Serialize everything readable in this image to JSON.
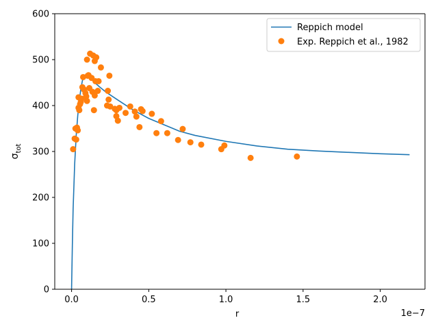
{
  "chart_data": {
    "type": "scatter",
    "xlabel": "r",
    "ylabel_main": "σ",
    "ylabel_sub": "tot",
    "x_offset_label": "1e−7",
    "xlim": [
      -0.109,
      2.29
    ],
    "ylim": [
      0,
      600
    ],
    "x_tick_values": [
      0.0,
      0.5,
      1.0,
      1.5,
      2.0
    ],
    "x_tick_labels": [
      "0.0",
      "0.5",
      "1.0",
      "1.5",
      "2.0"
    ],
    "y_tick_values": [
      0,
      100,
      200,
      300,
      400,
      500,
      600
    ],
    "y_tick_labels": [
      "0",
      "100",
      "200",
      "300",
      "400",
      "500",
      "600"
    ],
    "grid": false,
    "legend_position": "top-right",
    "colors": {
      "model": "#1f77b4",
      "experiment": "#ff7f0e"
    },
    "series": [
      {
        "name": "Reppich model",
        "kind": "line",
        "x": [
          0.0,
          0.005,
          0.01,
          0.02,
          0.03,
          0.04,
          0.05,
          0.06,
          0.07,
          0.08,
          0.09,
          0.1,
          0.11,
          0.13,
          0.15,
          0.18,
          0.22,
          0.26,
          0.3,
          0.35,
          0.4,
          0.45,
          0.5,
          0.6,
          0.7,
          0.8,
          1.0,
          1.2,
          1.4,
          1.6,
          1.8,
          2.0,
          2.19
        ],
        "y": [
          0,
          95,
          175,
          272,
          335,
          378,
          410,
          436,
          454,
          462,
          464,
          464,
          462,
          457,
          450,
          441,
          430,
          421,
          412,
          401,
          390,
          381,
          372,
          358,
          344,
          335,
          322,
          312,
          305,
          301,
          298,
          295,
          293
        ]
      },
      {
        "name": "Exp. Reppich et al., 1982",
        "kind": "scatter",
        "x": [
          0.01,
          0.02,
          0.025,
          0.03,
          0.035,
          0.04,
          0.045,
          0.045,
          0.05,
          0.055,
          0.06,
          0.065,
          0.07,
          0.075,
          0.08,
          0.09,
          0.095,
          0.1,
          0.1,
          0.105,
          0.11,
          0.115,
          0.12,
          0.13,
          0.135,
          0.14,
          0.145,
          0.15,
          0.15,
          0.155,
          0.16,
          0.17,
          0.175,
          0.19,
          0.23,
          0.235,
          0.24,
          0.245,
          0.25,
          0.28,
          0.29,
          0.29,
          0.3,
          0.31,
          0.35,
          0.38,
          0.41,
          0.42,
          0.44,
          0.45,
          0.46,
          0.52,
          0.55,
          0.58,
          0.62,
          0.69,
          0.72,
          0.77,
          0.84,
          0.97,
          0.99,
          1.16,
          1.46
        ],
        "y": [
          305,
          328,
          350,
          326,
          352,
          346,
          418,
          395,
          390,
          403,
          408,
          415,
          440,
          462,
          435,
          427,
          420,
          500,
          410,
          465,
          466,
          438,
          513,
          460,
          430,
          509,
          390,
          422,
          497,
          453,
          505,
          432,
          453,
          483,
          400,
          432,
          413,
          465,
          398,
          393,
          390,
          377,
          367,
          395,
          384,
          398,
          387,
          376,
          353,
          392,
          388,
          382,
          340,
          366,
          340,
          325,
          349,
          320,
          315,
          305,
          313,
          286,
          289
        ]
      }
    ]
  }
}
